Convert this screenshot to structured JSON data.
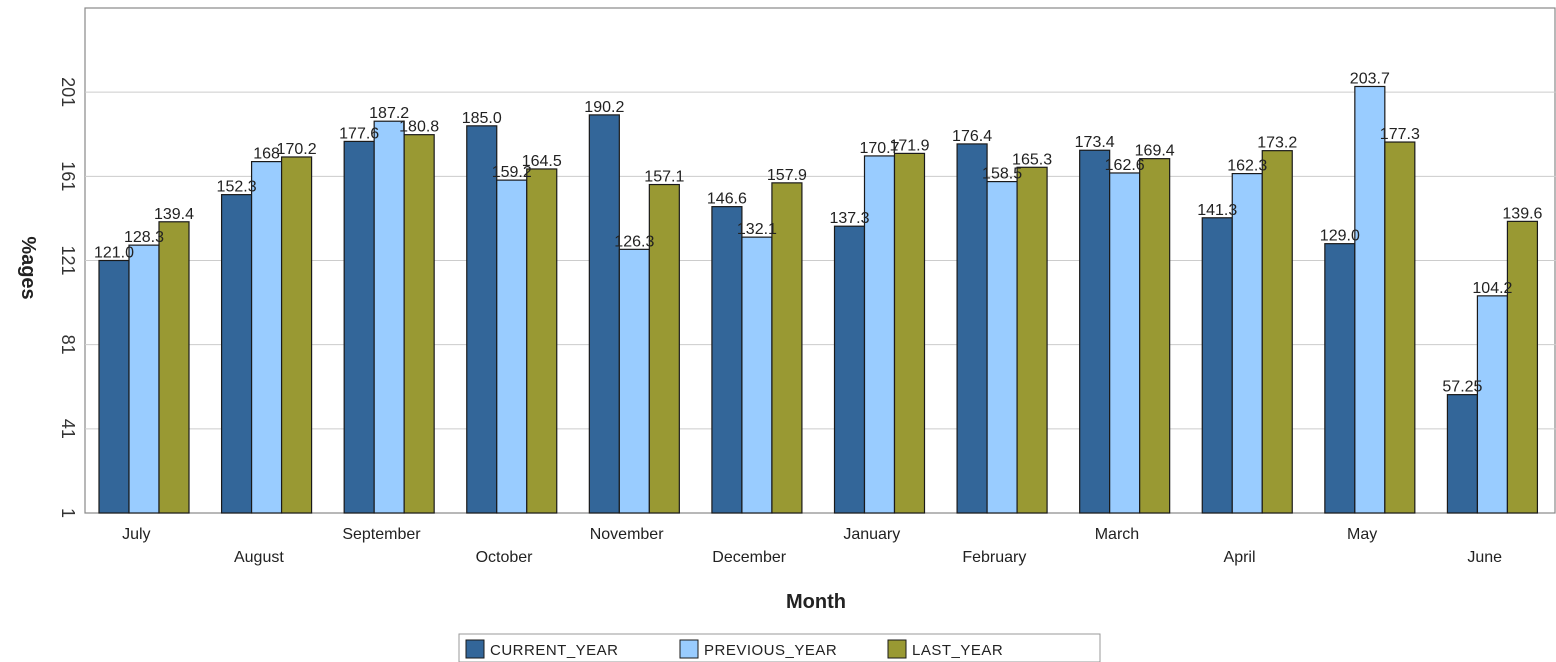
{
  "chart_data": {
    "type": "bar",
    "xlabel": "Month",
    "ylabel": "%ages",
    "ylim": [
      1,
      241
    ],
    "yticks": [
      1,
      41,
      81,
      121,
      161,
      201
    ],
    "grid": true,
    "legend_position": "bottom",
    "categories": [
      "July",
      "August",
      "September",
      "October",
      "November",
      "December",
      "January",
      "February",
      "March",
      "April",
      "May",
      "June"
    ],
    "series": [
      {
        "name": "CURRENT_YEAR",
        "color": "#336699",
        "values": [
          121.0,
          152.3,
          177.6,
          185.0,
          190.2,
          146.6,
          137.3,
          176.4,
          173.4,
          141.3,
          129.0,
          57.25
        ],
        "labels": [
          "121.0",
          "152.3",
          "177.6",
          "185.0",
          "190.2",
          "146.6",
          "137.3",
          "176.4",
          "173.4",
          "141.3",
          "129.0",
          "57.25"
        ]
      },
      {
        "name": "PREVIOUS_YEAR",
        "color": "#99ccff",
        "values": [
          128.3,
          168.0,
          187.2,
          159.2,
          126.3,
          132.1,
          170.7,
          158.5,
          162.6,
          162.3,
          203.7,
          104.2
        ],
        "labels": [
          "128.3",
          "168",
          "187.2",
          "159.2",
          "126.3",
          "132.1",
          "170.7",
          "158.5",
          "162.6",
          "162.3",
          "203.7",
          "104.2"
        ]
      },
      {
        "name": "LAST_YEAR",
        "color": "#999933",
        "values": [
          139.4,
          170.2,
          180.8,
          164.5,
          157.1,
          157.9,
          171.9,
          165.3,
          169.4,
          173.2,
          177.3,
          139.6
        ],
        "labels": [
          "139.4",
          "170.2",
          "180.8",
          "164.5",
          "157.1",
          "157.9",
          "171.9",
          "165.3",
          "169.4",
          "173.2",
          "177.3",
          "139.6"
        ]
      }
    ]
  }
}
